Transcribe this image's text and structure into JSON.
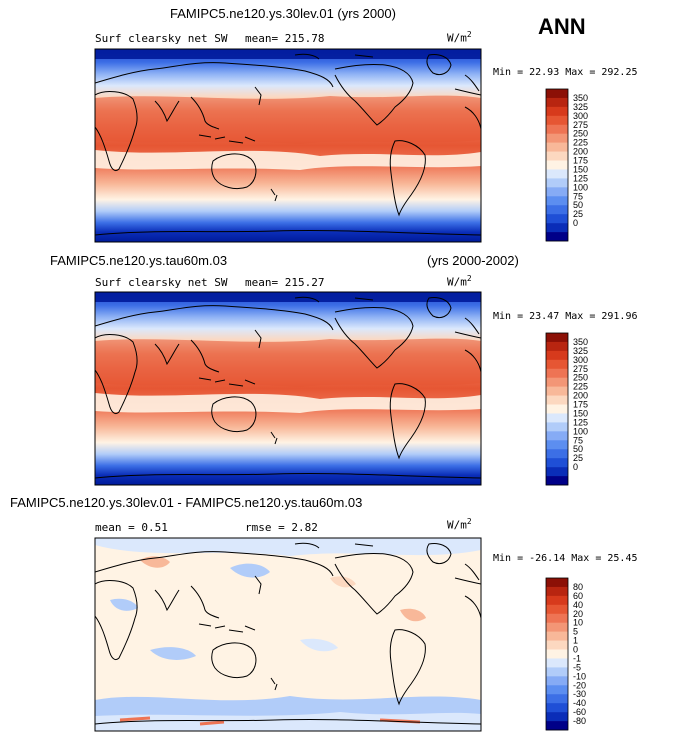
{
  "season": "ANN",
  "panels": [
    {
      "title": "FAMIPC5.ne120.ys.30lev.01 (yrs 2000)",
      "title_right": "",
      "variable": "Surf clearsky net SW",
      "mean_label": "mean= 215.78",
      "rmse_label": "",
      "units": "W/m",
      "units_exp": "2",
      "minmax": "Min =  22.93 Max = 292.25",
      "colorbar": {
        "colors": [
          "#000088",
          "#0a2db8",
          "#1f4fd6",
          "#3c6fe6",
          "#5c8ef0",
          "#86abf5",
          "#b1ccf9",
          "#dbe8fc",
          "#fff3e4",
          "#fcd8c0",
          "#f8b899",
          "#f39676",
          "#ee7454",
          "#e65633",
          "#d73a1c",
          "#b82510",
          "#8c1006"
        ],
        "labels": [
          "350",
          "325",
          "300",
          "275",
          "250",
          "225",
          "200",
          "175",
          "150",
          "125",
          "100",
          "75",
          "50",
          "25",
          "0"
        ]
      }
    },
    {
      "title": "FAMIPC5.ne120.ys.tau60m.03",
      "title_right": "(yrs 2000-2002)",
      "variable": "Surf clearsky net SW",
      "mean_label": "mean= 215.27",
      "rmse_label": "",
      "units": "W/m",
      "units_exp": "2",
      "minmax": "Min =  23.47 Max = 291.96",
      "colorbar": {
        "colors": [
          "#000088",
          "#0a2db8",
          "#1f4fd6",
          "#3c6fe6",
          "#5c8ef0",
          "#86abf5",
          "#b1ccf9",
          "#dbe8fc",
          "#fff3e4",
          "#fcd8c0",
          "#f8b899",
          "#f39676",
          "#ee7454",
          "#e65633",
          "#d73a1c",
          "#b82510",
          "#8c1006"
        ],
        "labels": [
          "350",
          "325",
          "300",
          "275",
          "250",
          "225",
          "200",
          "175",
          "150",
          "125",
          "100",
          "75",
          "50",
          "25",
          "0"
        ]
      }
    },
    {
      "title": "FAMIPC5.ne120.ys.30lev.01 - FAMIPC5.ne120.ys.tau60m.03",
      "title_right": "",
      "variable": "",
      "mean_label": "mean =    0.51",
      "rmse_label": "rmse =    2.82",
      "units": "W/m",
      "units_exp": "2",
      "minmax": "Min = -26.14 Max =  25.45",
      "colorbar": {
        "colors": [
          "#000088",
          "#0a2db8",
          "#1f4fd6",
          "#3c6fe6",
          "#5c8ef0",
          "#86abf5",
          "#b1ccf9",
          "#dbe8fc",
          "#fff3e4",
          "#fcd8c0",
          "#f8b899",
          "#f39676",
          "#ee7454",
          "#e65633",
          "#d73a1c",
          "#b82510",
          "#8c1006"
        ],
        "labels": [
          "80",
          "60",
          "40",
          "20",
          "10",
          "5",
          "1",
          "0",
          "-1",
          "-5",
          "-10",
          "-20",
          "-30",
          "-40",
          "-60",
          "-80"
        ]
      }
    }
  ]
}
